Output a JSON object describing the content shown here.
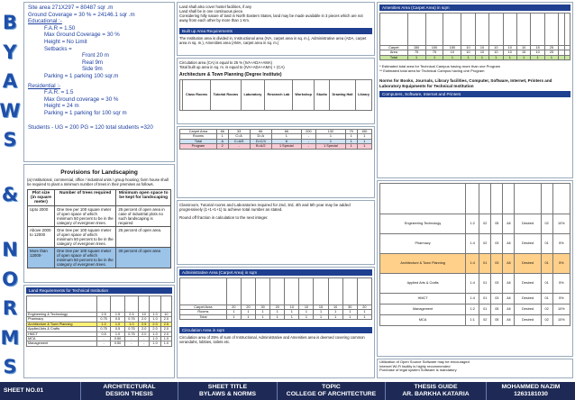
{
  "vertical_title": [
    "B",
    "Y",
    "A",
    "W",
    "S",
    "",
    "&",
    "",
    "N",
    "O",
    "R",
    "M",
    "S"
  ],
  "info": {
    "site_area": "Site area        271X297 = 80487 sqr .m",
    "ground_coverage": "Ground Coverage = 30 % = 24146.1 sqr .m",
    "educational_label": "Educational :-",
    "edu": {
      "far": "F.A.R     = 1.50",
      "max_gc": "Max Ground Coverage = 30 %",
      "height": "Height    =   No Limit",
      "setbacks": "Setbacks =",
      "front": "Front 20 m",
      "rear": "Real    9m",
      "side": "Side     9m",
      "parking": "Parking  =  1 parking 100 sqr.m"
    },
    "residential_label": "Residential :-",
    "res": {
      "far": "F.A.R.    =   1.5",
      "max_gc": "Max Ground coverage = 30 %",
      "height": "Height   = 24 m",
      "parking": "Parking =   1 parking for 100 sqr m"
    },
    "students": "Students -   UG = 200         PG = 120      total students =320"
  },
  "landscape": {
    "title": "Provisions for Landscaping",
    "intro": "(a) Institutional, commercial, office / industrial units / group housing; farm house shall be required to plant a minimum number of trees in their premises as follows.",
    "headers": [
      "Plot size (in square meter)",
      "Number of trees required",
      "Minimum open space to be kept for landscaping"
    ],
    "rows": [
      [
        "Upto 2000",
        "One tree per 100 square meter of open space of which minimum 50 percent to be in the category of evergreen trees.",
        "25 percent of open area in case of industrial plots no such landscaping is required"
      ],
      [
        "Above 2000 to 12000",
        "One tree per 100 square meter of open space of which minimum 50 percent to be in the category of evergreen trees.",
        "25 percent of open area."
      ],
      [
        "More than 12000-",
        "One tree per 100 square meter of open space of which minimum 50 percent to be in the category of evergreen trees.",
        "30 percent of open area"
      ]
    ]
  },
  "land_req": {
    "title": "Land Requirements for Technical Institution",
    "rows": [
      "Engineering & Technology",
      "Pharmacy",
      "Architecture & Town Planning",
      "Applied Arts & Crafts",
      "HMCT",
      "MCA",
      "Management"
    ]
  },
  "mid": {
    "m1_title": "Built up Area Requirements",
    "m1_lines": [
      "Land shall also cover hostel facilities, if any",
      "Land shall be in one continuous piece.",
      "Considering hilly nature of land in North Eastern States, land may be made available in 3 pieces which are not away from each other by more than 1 Km."
    ],
    "m2_line1": "The Institution area is divided in, Instructional area (IVA, carpet area in sq. m.), Administrative area (ADA, carpet area in sq. m.), Amenities area (AMA, carpet area in sq. m.)",
    "m2_line2": "Circulation area (CA) is equal to 25 % (IVA+ADA+AMA)",
    "m2_line3": "Total built up area in sq. m. is equal to (IVA+ADA+AMA) + (CA)",
    "m3_title": "Architecture & Town Planning (Degree Institute)",
    "m3_cols": [
      "Class Rooms",
      "Tutorial Rooms",
      "Laboratory",
      "Research Lab",
      "Workshop",
      "Studio",
      "Drawing Hall",
      "Library"
    ],
    "notes": [
      "Classroom, Tutorial rooms and Laboratories required for 2nd, 3rd, 4th and 5th year may be added progressively (1+1+1+1) to achieve total number as stated.",
      "Round off fraction in calculation to the next integer."
    ],
    "admin_title": "Administrative Area (Carpet Area) in sqm",
    "circ_title": "Circulation Area in sqm",
    "circ_line": "Circulation area of 25% of sum of Instructional, Administrative and Amenities area is deemed covering common verandahs, lobbies, toilets etc."
  },
  "right": {
    "amen_title": "Amenities Area (Carpet Area) in sqm",
    "notes": [
      "* Estimated total area for Technical Campus having more than one Program",
      "** Estimated total area for Technical Campus having one Program"
    ],
    "norms_title": "Norms for Books, Journals, Library facilities, Computer, Software, Internet, Printers and Laboratory Equipments for Technical Institution",
    "norms_sub": "Computers, Software, Internet and Printers",
    "programs": [
      "Engineering Technology",
      "Pharmacy",
      "Architecture & Town Planning",
      "Applied Arts & Crafts",
      "HMCT",
      "Management",
      "MCA"
    ],
    "footnote": [
      "Utilization of Open Source Software may be encouraged",
      "Internet Wi-Fi facility is highly recommended",
      "Purchase of legal system Software is mandatory"
    ]
  },
  "footer": {
    "sheet": "SHEET NO.01",
    "subject1": "ARCHITECTURAL",
    "subject2": "DESIGN   THESIS",
    "title_label": "SHEET TITLE",
    "title_value": "BYLAWS & NORMS",
    "topic_label": "TOPIC",
    "topic_value": "COLLEGE OF ARCHITECTURE",
    "guide_label": "THESIS GUIDE",
    "guide_value": "AR. BARKHA KATARIA",
    "author_name": "MOHAMMED NAZIM",
    "author_id": "1263181030"
  }
}
